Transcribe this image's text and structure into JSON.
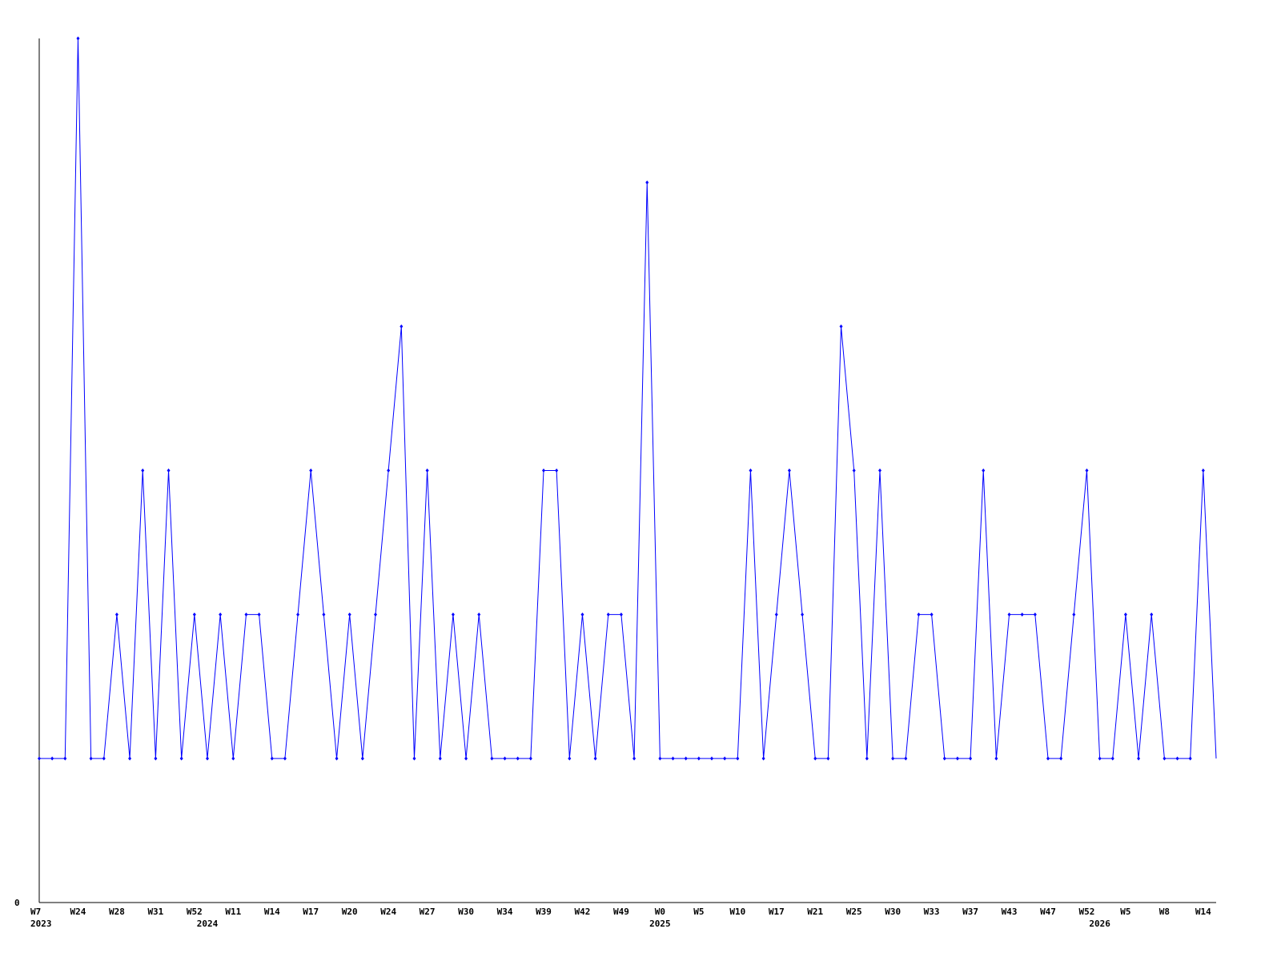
{
  "chart_data": {
    "type": "line",
    "title": "",
    "xlabel": "",
    "ylabel": "",
    "ylim": [
      0,
      6
    ],
    "y_tick_labels": [
      "0"
    ],
    "grid": false,
    "line_color": "#0000ff",
    "values": [
      1,
      1,
      1,
      6,
      1,
      1,
      2,
      1,
      3,
      1,
      3,
      1,
      2,
      1,
      2,
      1,
      2,
      2,
      1,
      1,
      2,
      3,
      2,
      1,
      2,
      1,
      2,
      3,
      4,
      1,
      3,
      1,
      2,
      1,
      2,
      1,
      1,
      1,
      1,
      3,
      3,
      1,
      2,
      1,
      2,
      2,
      1,
      5,
      1,
      1,
      1,
      1,
      1,
      1,
      1,
      3,
      1,
      2,
      3,
      2,
      1,
      1,
      4,
      3,
      1,
      3,
      1,
      1,
      2,
      2,
      1,
      1,
      1,
      3,
      1,
      2,
      2,
      2,
      1,
      1,
      2,
      3,
      1,
      1,
      2,
      1,
      2,
      1,
      1,
      1,
      3,
      1
    ],
    "x_tick_labels": [
      {
        "index": 0,
        "label": "W7"
      },
      {
        "index": 3,
        "label": "W24"
      },
      {
        "index": 6,
        "label": "W28"
      },
      {
        "index": 9,
        "label": "W31"
      },
      {
        "index": 12,
        "label": "W52"
      },
      {
        "index": 15,
        "label": "W11"
      },
      {
        "index": 18,
        "label": "W14"
      },
      {
        "index": 21,
        "label": "W17"
      },
      {
        "index": 24,
        "label": "W20"
      },
      {
        "index": 27,
        "label": "W24"
      },
      {
        "index": 30,
        "label": "W27"
      },
      {
        "index": 33,
        "label": "W30"
      },
      {
        "index": 36,
        "label": "W34"
      },
      {
        "index": 39,
        "label": "W39"
      },
      {
        "index": 42,
        "label": "W42"
      },
      {
        "index": 45,
        "label": "W49"
      },
      {
        "index": 48,
        "label": "W0"
      },
      {
        "index": 51,
        "label": "W5"
      },
      {
        "index": 54,
        "label": "W10"
      },
      {
        "index": 57,
        "label": "W17"
      },
      {
        "index": 60,
        "label": "W21"
      },
      {
        "index": 63,
        "label": "W25"
      },
      {
        "index": 66,
        "label": "W30"
      },
      {
        "index": 69,
        "label": "W33"
      },
      {
        "index": 72,
        "label": "W37"
      },
      {
        "index": 75,
        "label": "W43"
      },
      {
        "index": 78,
        "label": "W47"
      },
      {
        "index": 81,
        "label": "W52"
      },
      {
        "index": 84,
        "label": "W5"
      },
      {
        "index": 87,
        "label": "W8"
      },
      {
        "index": 90,
        "label": "W14"
      }
    ],
    "year_labels": [
      {
        "index": 0,
        "label": "2023"
      },
      {
        "index": 13,
        "label": "2024"
      },
      {
        "index": 48,
        "label": "2025"
      },
      {
        "index": 82,
        "label": "2026"
      }
    ]
  }
}
